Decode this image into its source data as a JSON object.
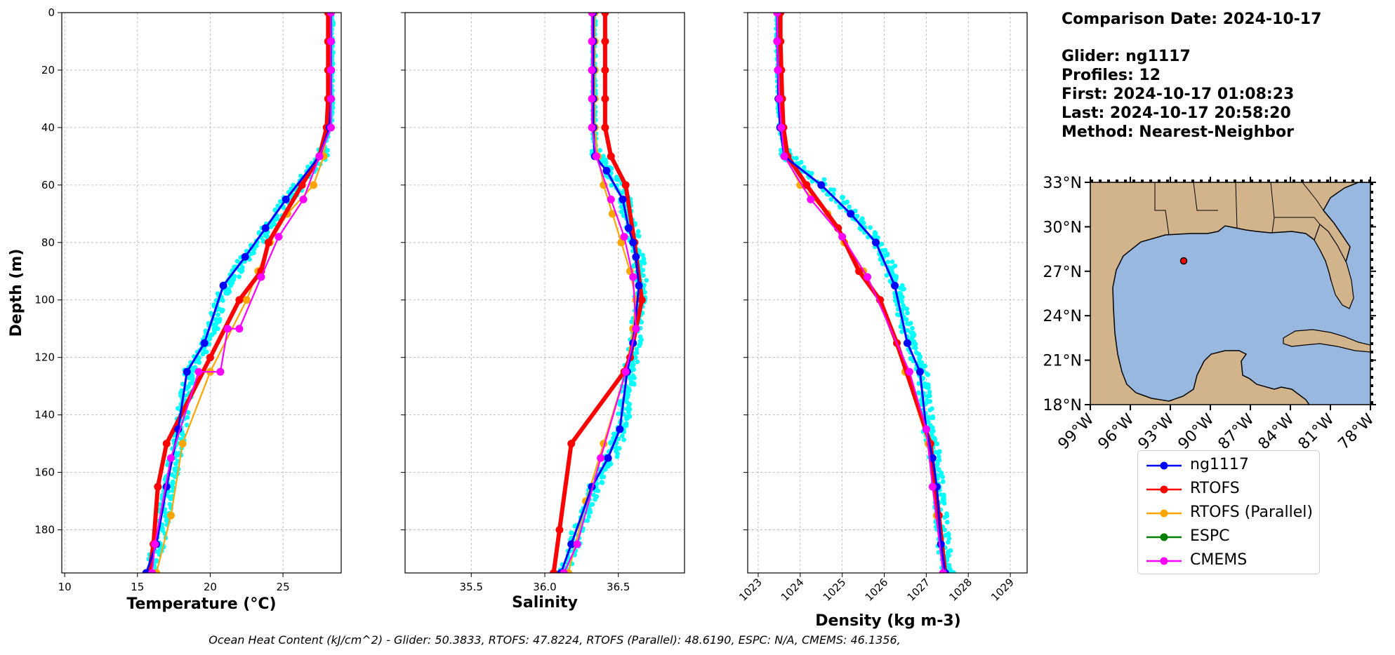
{
  "info": {
    "comparison_date": "Comparison Date: 2024-10-17",
    "glider": "Glider: ng1117",
    "profiles": "Profiles: 12",
    "first": "First: 2024-10-17 01:08:23",
    "last": "Last: 2024-10-17 20:58:20",
    "method": "Method: Nearest-Neighbor"
  },
  "footer": "Ocean Heat Content (kJ/cm^2) - Glider: 50.3833,  RTOFS: 47.8224,  RTOFS (Parallel): 48.6190,  ESPC: N/A,  CMEMS: 46.1356,",
  "legend": [
    {
      "label": "ng1117",
      "color": "#0000ff"
    },
    {
      "label": "RTOFS",
      "color": "#ff0000"
    },
    {
      "label": "RTOFS (Parallel)",
      "color": "#ffa500"
    },
    {
      "label": "ESPC",
      "color": "#008000"
    },
    {
      "label": "CMEMS",
      "color": "#ff00ff"
    }
  ],
  "colors": {
    "glider_scatter": "#00ffff",
    "land": "#d2b48c",
    "ocean": "#99b8e0"
  },
  "chart_data": [
    {
      "type": "line",
      "xlabel": "Temperature (°C)",
      "ylabel": "Depth (m)",
      "xlim": [
        9.8,
        29
      ],
      "ylim": [
        195,
        0
      ],
      "xticks": [
        10,
        15,
        20,
        25
      ],
      "yticks": [
        0,
        20,
        40,
        60,
        80,
        100,
        120,
        140,
        160,
        180
      ],
      "grid": true,
      "series": [
        {
          "name": "ng1117",
          "x": [
            28.3,
            28.3,
            28.3,
            28.3,
            28.2,
            27.5,
            25.2,
            23.8,
            22.4,
            20.9,
            19.6,
            18.4,
            17.8,
            17.0,
            16.3,
            15.6
          ],
          "y": [
            0,
            10,
            20,
            30,
            40,
            50,
            65,
            75,
            85,
            95,
            115,
            125,
            145,
            165,
            185,
            195
          ]
        },
        {
          "name": "RTOFS",
          "x": [
            28.1,
            28.1,
            28.1,
            28.1,
            28.0,
            27.5,
            26.3,
            24.0,
            23.5,
            22.0,
            20.0,
            17.0,
            16.4,
            16.1,
            15.8
          ],
          "y": [
            0,
            10,
            20,
            30,
            40,
            50,
            60,
            80,
            90,
            100,
            120,
            150,
            165,
            185,
            195
          ]
        },
        {
          "name": "RTOFS (Parallel)",
          "x": [
            28.1,
            28.1,
            28.1,
            28.1,
            28.0,
            27.8,
            27.1,
            25.3,
            24.1,
            23.3,
            22.5,
            20.0,
            18.1,
            17.3,
            16.3
          ],
          "y": [
            0,
            10,
            20,
            30,
            40,
            50,
            60,
            70,
            80,
            90,
            100,
            125,
            150,
            175,
            195
          ]
        },
        {
          "name": "CMEMS",
          "x": [
            28.3,
            28.3,
            28.3,
            28.3,
            28.3,
            27.5,
            26.4,
            24.7,
            23.5,
            22.0,
            21.2,
            20.7,
            19.2,
            17.3,
            16.2,
            16.0
          ],
          "y": [
            0,
            10,
            20,
            30,
            40,
            50,
            65,
            78,
            92,
            110,
            110,
            125,
            125,
            155,
            185,
            195
          ]
        }
      ]
    },
    {
      "type": "line",
      "xlabel": "Salinity",
      "xlim": [
        35.05,
        36.95
      ],
      "ylim": [
        195,
        0
      ],
      "xticks": [
        35.5,
        36.0,
        36.5
      ],
      "grid": true,
      "series": [
        {
          "name": "ng1117",
          "x": [
            36.33,
            36.33,
            36.33,
            36.33,
            36.33,
            36.34,
            36.42,
            36.53,
            36.57,
            36.6,
            36.62,
            36.64,
            36.6,
            36.56,
            36.51,
            36.43,
            36.32,
            36.18,
            36.11
          ],
          "y": [
            0,
            10,
            20,
            30,
            40,
            50,
            55,
            65,
            75,
            80,
            85,
            95,
            115,
            125,
            145,
            155,
            165,
            185,
            195
          ]
        },
        {
          "name": "RTOFS",
          "x": [
            36.41,
            36.41,
            36.41,
            36.41,
            36.41,
            36.45,
            36.55,
            36.61,
            36.66,
            36.62,
            36.58,
            36.54,
            36.18,
            36.1,
            36.06
          ],
          "y": [
            0,
            10,
            20,
            30,
            40,
            50,
            60,
            80,
            100,
            110,
            120,
            125,
            150,
            180,
            195
          ]
        },
        {
          "name": "RTOFS (Parallel)",
          "x": [
            36.34,
            36.34,
            36.34,
            36.34,
            36.34,
            36.36,
            36.4,
            36.46,
            36.52,
            36.58,
            36.62,
            36.6,
            36.55,
            36.4,
            36.28,
            36.16
          ],
          "y": [
            0,
            10,
            20,
            30,
            40,
            50,
            60,
            70,
            80,
            90,
            100,
            110,
            125,
            150,
            170,
            195
          ]
        },
        {
          "name": "CMEMS",
          "x": [
            36.32,
            36.32,
            36.32,
            36.32,
            36.32,
            36.35,
            36.45,
            36.54,
            36.6,
            36.62,
            36.55,
            36.38,
            36.22,
            36.13
          ],
          "y": [
            0,
            10,
            20,
            30,
            40,
            50,
            65,
            78,
            92,
            110,
            125,
            155,
            185,
            195
          ]
        }
      ]
    },
    {
      "type": "line",
      "xlabel": "Density (kg m-3)",
      "xlim": [
        1022.75,
        1029.4
      ],
      "ylim": [
        195,
        0
      ],
      "xticks": [
        1023,
        1024,
        1025,
        1026,
        1027,
        1028,
        1029
      ],
      "grid": true,
      "series": [
        {
          "name": "ng1117",
          "x": [
            1023.45,
            1023.45,
            1023.47,
            1023.48,
            1023.52,
            1023.62,
            1024.5,
            1025.2,
            1025.8,
            1026.25,
            1026.55,
            1026.85,
            1027.0,
            1027.15,
            1027.25,
            1027.35,
            1027.45
          ],
          "y": [
            0,
            10,
            20,
            30,
            40,
            50,
            60,
            70,
            80,
            95,
            115,
            125,
            145,
            155,
            165,
            185,
            195
          ]
        },
        {
          "name": "RTOFS",
          "x": [
            1023.53,
            1023.53,
            1023.55,
            1023.57,
            1023.6,
            1023.7,
            1024.15,
            1024.9,
            1025.4,
            1025.9,
            1026.3,
            1027.1,
            1027.3,
            1027.45
          ],
          "y": [
            0,
            10,
            20,
            30,
            40,
            50,
            60,
            75,
            90,
            100,
            115,
            150,
            175,
            195
          ]
        },
        {
          "name": "RTOFS (Parallel)",
          "x": [
            1023.45,
            1023.45,
            1023.47,
            1023.5,
            1023.55,
            1023.65,
            1024.0,
            1024.65,
            1025.05,
            1025.5,
            1025.9,
            1026.5,
            1027.05,
            1027.25,
            1027.45
          ],
          "y": [
            0,
            10,
            20,
            30,
            40,
            50,
            60,
            70,
            80,
            90,
            100,
            125,
            150,
            175,
            195
          ]
        },
        {
          "name": "CMEMS",
          "x": [
            1023.45,
            1023.45,
            1023.47,
            1023.5,
            1023.55,
            1023.62,
            1024.25,
            1025.0,
            1025.6,
            1026.6,
            1027.0,
            1027.15,
            1027.4
          ],
          "y": [
            0,
            10,
            20,
            30,
            40,
            50,
            65,
            78,
            92,
            125,
            145,
            165,
            195
          ]
        }
      ]
    }
  ],
  "map": {
    "lat_ticks": [
      "33°N",
      "30°N",
      "27°N",
      "24°N",
      "21°N",
      "18°N"
    ],
    "lon_ticks": [
      "99°W",
      "96°W",
      "93°W",
      "90°W",
      "87°W",
      "84°W",
      "81°W",
      "78°W"
    ],
    "extent": {
      "lon": [
        -99,
        -78
      ],
      "lat": [
        18,
        33
      ]
    },
    "glider_position": {
      "lon": -92.0,
      "lat": 27.7
    }
  }
}
